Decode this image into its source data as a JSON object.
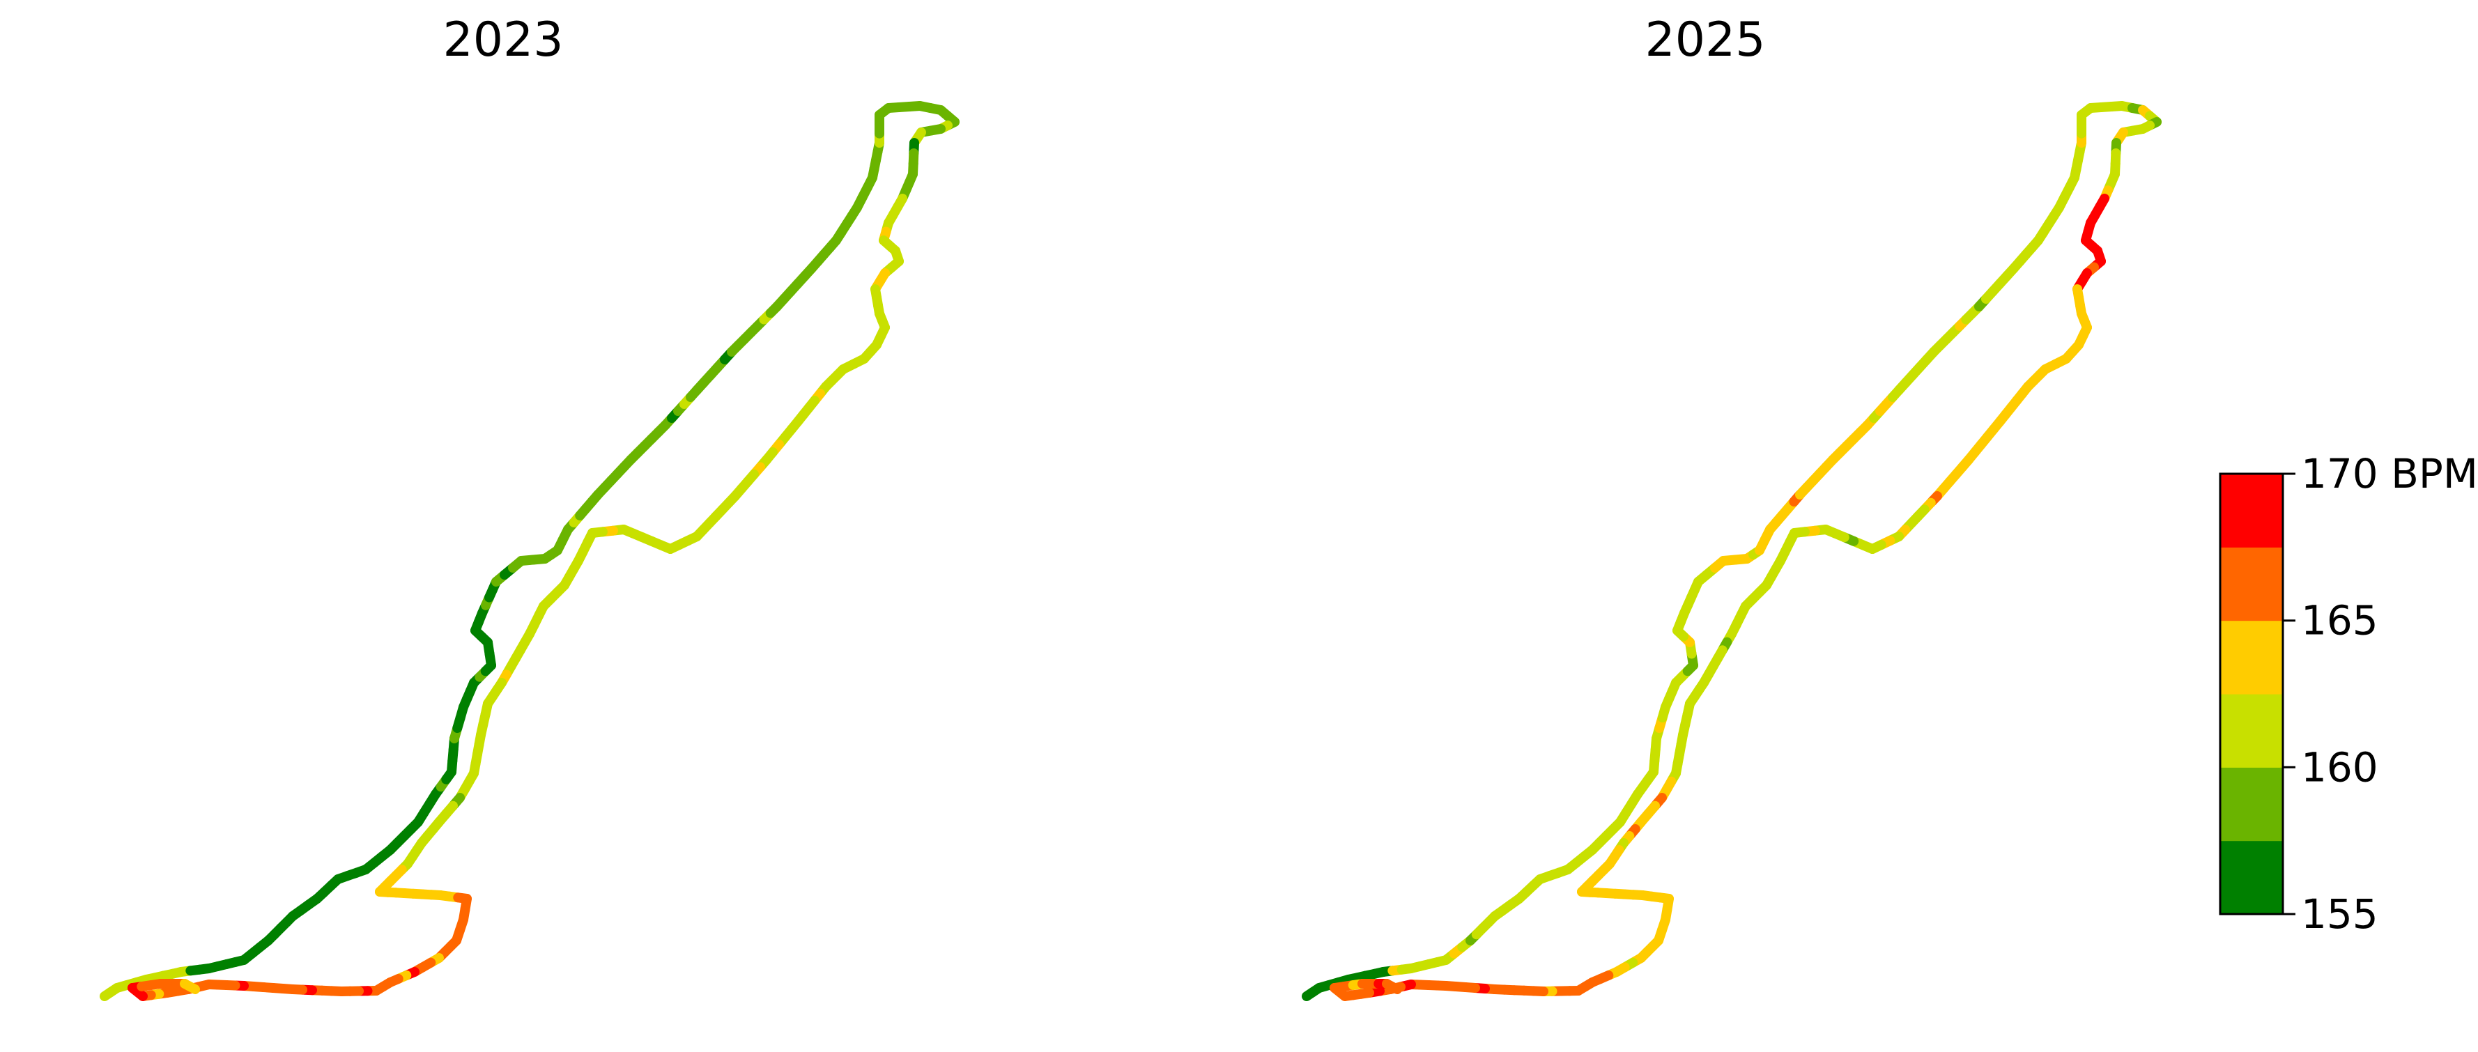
{
  "chart_data": {
    "type": "heatmap",
    "panels": [
      {
        "title": "2023",
        "legend_series": "heart-rate"
      },
      {
        "title": "2025",
        "legend_series": "heart-rate"
      }
    ],
    "colorbar": {
      "range": [
        155,
        170
      ],
      "ticks": [
        "155",
        "160",
        "165",
        "170 BPM"
      ],
      "bins": [
        {
          "from": 155.0,
          "to": 157.5,
          "color": "#008000"
        },
        {
          "from": 157.5,
          "to": 160.0,
          "color": "#6ab400"
        },
        {
          "from": 160.0,
          "to": 162.5,
          "color": "#c8e000"
        },
        {
          "from": 162.5,
          "to": 165.0,
          "color": "#ffcc00"
        },
        {
          "from": 165.0,
          "to": 167.5,
          "color": "#ff6600"
        },
        {
          "from": 167.5,
          "to": 170.0,
          "color": "#ff0000"
        }
      ]
    },
    "grid": false,
    "axes_visible": false
  }
}
